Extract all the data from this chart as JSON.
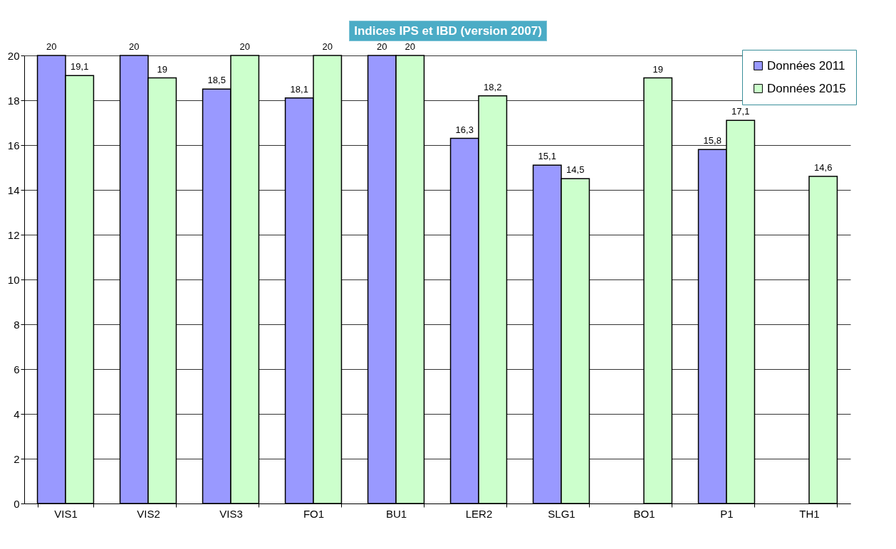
{
  "chart_data": {
    "type": "bar",
    "title": "Indices IPS et IBD (version 2007)",
    "categories": [
      "VIS1",
      "VIS2",
      "VIS3",
      "FO1",
      "BU1",
      "LER2",
      "SLG1",
      "BO1",
      "P1",
      "TH1"
    ],
    "series": [
      {
        "name": "Données 2011",
        "color": "#9999ff",
        "values": [
          20,
          20,
          18.5,
          18.1,
          20,
          16.3,
          15.1,
          null,
          15.8,
          null
        ],
        "value_labels": [
          "20",
          "20",
          "18,5",
          "18,1",
          "20",
          "16,3",
          "15,1",
          null,
          "15,8",
          null
        ]
      },
      {
        "name": "Données 2015",
        "color": "#ccffcc",
        "values": [
          19.1,
          19,
          20,
          20,
          20,
          18.2,
          14.5,
          19,
          17.1,
          14.6
        ],
        "value_labels": [
          "19,1",
          "19",
          "20",
          "20",
          "20",
          "18,2",
          "14,5",
          "19",
          "17,1",
          "14,6"
        ]
      }
    ],
    "ylim": [
      0,
      20
    ],
    "yticks": [
      0,
      2,
      4,
      6,
      8,
      10,
      12,
      14,
      16,
      18,
      20
    ],
    "grid": "y",
    "legend": "top right"
  }
}
